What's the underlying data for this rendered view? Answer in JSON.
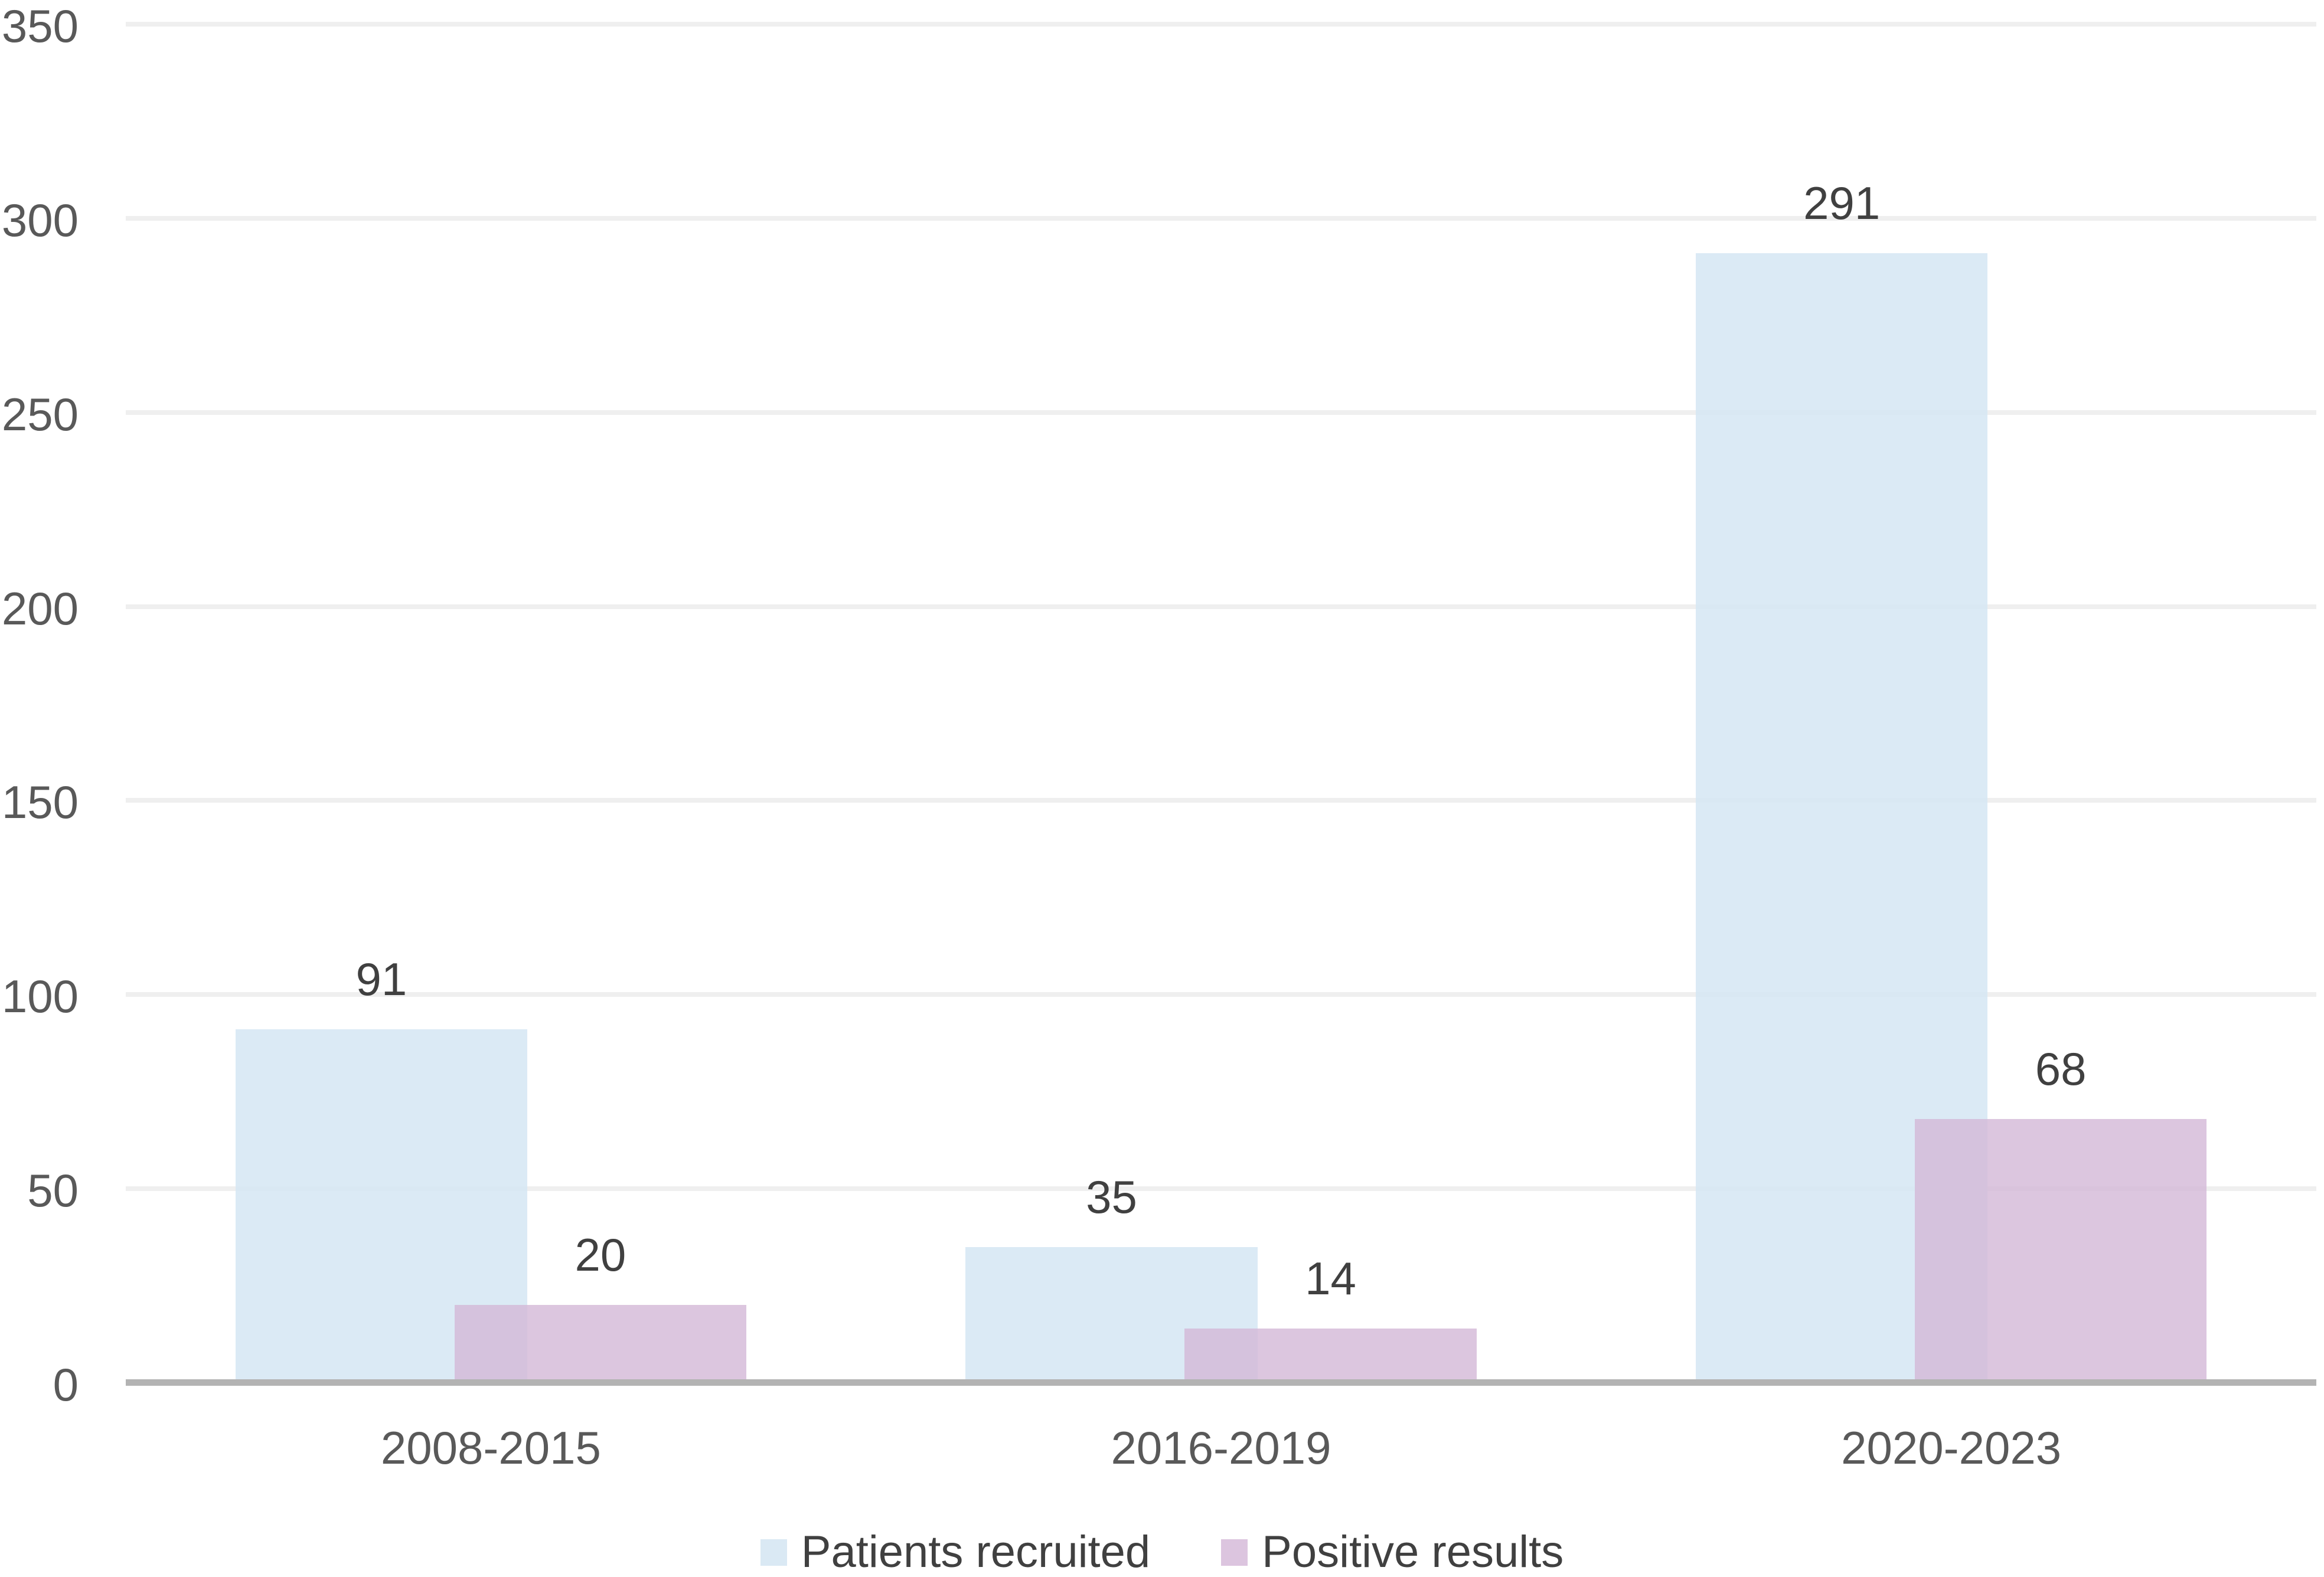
{
  "chart_data": {
    "type": "bar",
    "title": "",
    "categories": [
      "2008-2015",
      "2016-2019",
      "2020-2023"
    ],
    "series": [
      {
        "name": "Patients recruited",
        "values": [
          91,
          35,
          291
        ],
        "color": "#DAE9F4",
        "color_rgba": "rgba(214,231,244,0.88)"
      },
      {
        "name": "Positive results",
        "values": [
          20,
          14,
          68
        ],
        "color": "#DCC5DF",
        "color_rgba": "rgba(212,185,216,0.81)"
      }
    ],
    "data_labels": [
      "91",
      "20",
      "35",
      "14",
      "291",
      "68"
    ],
    "ylim": [
      0,
      350
    ],
    "ytick_interval": 50,
    "yticks": [
      "0",
      "50",
      "100",
      "150",
      "200",
      "250",
      "300",
      "350"
    ],
    "grid": "on",
    "legend_position": "bottom",
    "bar_overlap_percent": 25,
    "xlabel": "",
    "ylabel": ""
  },
  "colors": {
    "background": "#FFFFFF",
    "gridline": "#EFEFEF",
    "axis_line": "#B3B3B3",
    "tick_label": "#595959",
    "category_label": "#595959",
    "data_label": "#404040",
    "legend_label": "#404040",
    "series_blue": "#DAE9F4",
    "series_pink": "#DCC5DF",
    "series_overlap": "#D5C0DA"
  }
}
